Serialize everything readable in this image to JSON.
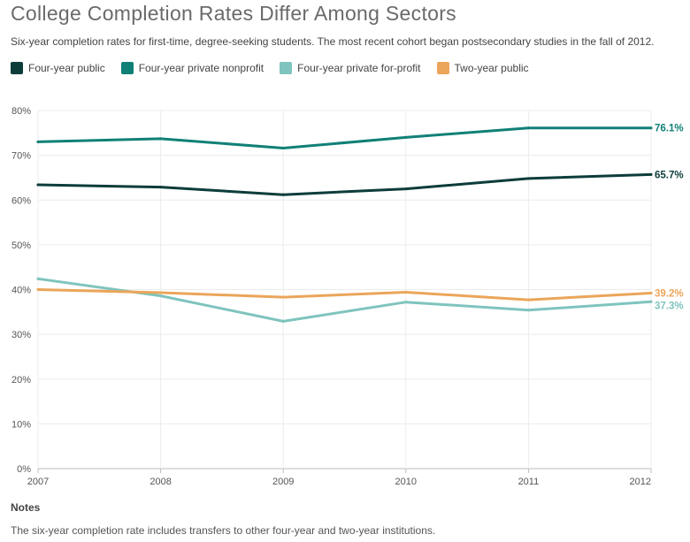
{
  "title": "College Completion Rates Differ Among Sectors",
  "subtitle": "Six-year completion rates for first-time, degree-seeking students. The most recent cohort began postsecondary studies in the fall of 2012.",
  "notes": {
    "heading": "Notes",
    "text": "The six-year completion rate includes transfers to other four-year and two-year institutions."
  },
  "chart_data": {
    "type": "line",
    "title": "College Completion Rates Differ Among Sectors",
    "subtitle": "Six-year completion rates for first-time, degree-seeking students. The most recent cohort began postsecondary studies in the fall of 2012.",
    "x": [
      "2007",
      "2008",
      "2009",
      "2010",
      "2011",
      "2012"
    ],
    "ylim": [
      0,
      80
    ],
    "yticks": [
      "0%",
      "10%",
      "20%",
      "30%",
      "40%",
      "50%",
      "60%",
      "70%",
      "80%"
    ],
    "grid": true,
    "legend_position": "top-left",
    "series": [
      {
        "name": "Four-year public",
        "color": "#0c3d3a",
        "values": [
          63.4,
          62.9,
          61.2,
          62.5,
          64.8,
          65.7
        ],
        "end_label": "65.7%"
      },
      {
        "name": "Four-year private nonprofit",
        "color": "#108077",
        "values": [
          73.0,
          73.7,
          71.6,
          74.0,
          76.1,
          76.1
        ],
        "end_label": "76.1%"
      },
      {
        "name": "Four-year private for-profit",
        "color": "#7fc4be",
        "values": [
          42.4,
          38.6,
          32.9,
          37.2,
          35.4,
          37.3
        ],
        "end_label": "37.3%"
      },
      {
        "name": "Two-year public",
        "color": "#eba55a",
        "values": [
          40.0,
          39.3,
          38.3,
          39.4,
          37.7,
          39.2
        ],
        "end_label": "39.2%"
      }
    ]
  }
}
